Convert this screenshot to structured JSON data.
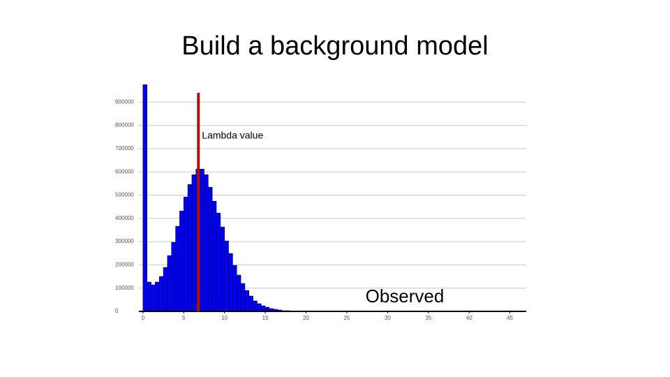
{
  "title": "Build a background model",
  "chart_data": {
    "type": "histogram",
    "xlabel": "Observed",
    "bins": [
      0,
      0.5,
      1,
      1.5,
      2,
      2.5,
      3,
      3.5,
      4,
      4.5,
      5,
      5.5,
      6,
      6.5,
      7,
      7.5,
      8,
      8.5,
      9,
      9.5,
      10,
      10.5,
      11,
      11.5,
      12,
      12.5,
      13,
      13.5,
      14,
      14.5,
      15,
      15.5,
      16,
      16.5,
      17,
      17.5,
      18,
      18.5,
      19
    ],
    "values": [
      975000,
      126000,
      114000,
      126000,
      150000,
      189000,
      240000,
      297000,
      366000,
      432000,
      492000,
      546000,
      588000,
      612000,
      612000,
      588000,
      534000,
      474000,
      423000,
      363000,
      303000,
      249000,
      198000,
      156000,
      120000,
      90000,
      66000,
      45000,
      33000,
      24000,
      18000,
      12000,
      9000,
      6000,
      3000,
      3000,
      1000,
      1000
    ],
    "color": "#0000ee",
    "xlim": [
      -0.5,
      47
    ],
    "xticks": [
      0,
      5,
      10,
      15,
      20,
      25,
      30,
      35,
      40,
      45
    ],
    "ylim": [
      0,
      1000000
    ],
    "yticks": [
      0,
      100000,
      200000,
      300000,
      400000,
      500000,
      600000,
      700000,
      800000,
      900000
    ],
    "grid": true,
    "annotations": [
      {
        "text": "Lambda value",
        "x": 6.8,
        "color": "#b01010"
      }
    ]
  }
}
